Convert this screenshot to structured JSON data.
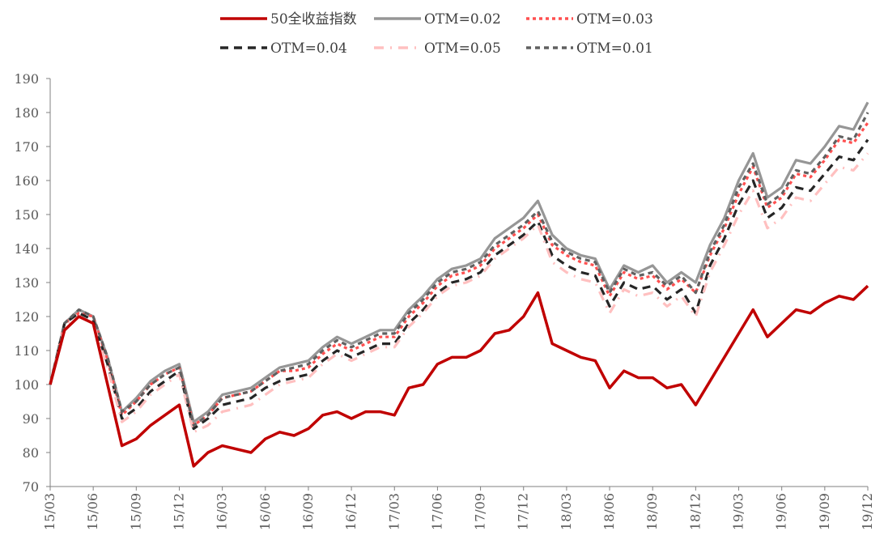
{
  "chart_data": {
    "type": "line",
    "title": "",
    "xlabel": "",
    "ylabel": "",
    "ylim": [
      70,
      190
    ],
    "yticks": [
      70,
      80,
      90,
      100,
      110,
      120,
      130,
      140,
      150,
      160,
      170,
      180,
      190
    ],
    "xticks": [
      "15/03",
      "15/06",
      "15/09",
      "15/12",
      "16/03",
      "16/06",
      "16/09",
      "16/12",
      "17/03",
      "17/06",
      "17/09",
      "17/12",
      "18/03",
      "18/06",
      "18/09",
      "18/12",
      "19/03",
      "19/06",
      "19/09",
      "19/12"
    ],
    "grid": false,
    "legend": "top",
    "x": [
      "15/03",
      "15/04",
      "15/05",
      "15/06",
      "15/07",
      "15/08",
      "15/09",
      "15/10",
      "15/11",
      "15/12",
      "16/01",
      "16/02",
      "16/03",
      "16/04",
      "16/05",
      "16/06",
      "16/07",
      "16/08",
      "16/09",
      "16/10",
      "16/11",
      "16/12",
      "17/01",
      "17/02",
      "17/03",
      "17/04",
      "17/05",
      "17/06",
      "17/07",
      "17/08",
      "17/09",
      "17/10",
      "17/11",
      "17/12",
      "18/01",
      "18/02",
      "18/03",
      "18/04",
      "18/05",
      "18/06",
      "18/07",
      "18/08",
      "18/09",
      "18/10",
      "18/11",
      "18/12",
      "19/01",
      "19/02",
      "19/03",
      "19/04",
      "19/05",
      "19/06",
      "19/07",
      "19/08",
      "19/09",
      "19/10",
      "19/11",
      "19/12"
    ],
    "series": [
      {
        "name": "50全收益指数",
        "color": "#c00000",
        "dash": "solid",
        "values": [
          100,
          116,
          120,
          118,
          100,
          82,
          84,
          88,
          91,
          94,
          76,
          80,
          82,
          81,
          80,
          84,
          86,
          85,
          87,
          91,
          92,
          90,
          92,
          92,
          91,
          99,
          100,
          106,
          108,
          108,
          110,
          115,
          116,
          120,
          127,
          112,
          110,
          108,
          107,
          99,
          104,
          102,
          102,
          99,
          100,
          94,
          101,
          108,
          115,
          122,
          114,
          118,
          122,
          121,
          124,
          126,
          125,
          129
        ]
      },
      {
        "name": "OTM=0.02",
        "color": "#969696",
        "dash": "solid",
        "values": [
          100,
          118,
          122,
          120,
          108,
          92,
          96,
          101,
          104,
          106,
          89,
          92,
          97,
          98,
          99,
          102,
          105,
          106,
          107,
          111,
          114,
          112,
          114,
          116,
          116,
          122,
          126,
          131,
          134,
          135,
          137,
          143,
          146,
          149,
          154,
          144,
          140,
          138,
          137,
          128,
          135,
          133,
          135,
          130,
          133,
          130,
          141,
          149,
          160,
          168,
          155,
          158,
          166,
          165,
          170,
          176,
          175,
          183
        ]
      },
      {
        "name": "OTM=0.03",
        "color": "#ff5050",
        "dash": "4 4",
        "values": [
          100,
          118,
          121,
          120,
          107,
          91,
          95,
          100,
          103,
          105,
          88,
          91,
          96,
          97,
          98,
          101,
          104,
          104,
          105,
          109,
          112,
          110,
          112,
          114,
          114,
          120,
          124,
          129,
          132,
          133,
          135,
          140,
          143,
          146,
          150,
          141,
          138,
          136,
          135,
          126,
          133,
          131,
          132,
          128,
          131,
          127,
          138,
          146,
          156,
          164,
          152,
          155,
          162,
          161,
          166,
          172,
          171,
          177
        ]
      },
      {
        "name": "OTM=0.04",
        "color": "#262626",
        "dash": "10 7",
        "values": [
          100,
          118,
          121,
          119,
          106,
          90,
          93,
          98,
          101,
          104,
          87,
          90,
          94,
          95,
          96,
          99,
          101,
          102,
          103,
          107,
          110,
          108,
          110,
          112,
          112,
          118,
          122,
          127,
          130,
          131,
          133,
          138,
          141,
          144,
          148,
          138,
          135,
          133,
          132,
          123,
          130,
          128,
          129,
          125,
          128,
          121,
          135,
          143,
          153,
          160,
          149,
          152,
          158,
          157,
          162,
          167,
          166,
          172
        ]
      },
      {
        "name": "OTM=0.05",
        "color": "#ffc0c0",
        "dash": "12 8 2 8",
        "values": [
          100,
          117,
          120,
          118,
          105,
          89,
          92,
          97,
          100,
          103,
          86,
          88,
          92,
          93,
          94,
          97,
          100,
          101,
          102,
          106,
          109,
          107,
          109,
          111,
          111,
          117,
          121,
          126,
          129,
          130,
          132,
          137,
          140,
          143,
          147,
          136,
          133,
          131,
          130,
          121,
          128,
          126,
          127,
          123,
          126,
          120,
          133,
          141,
          150,
          157,
          146,
          149,
          155,
          154,
          159,
          164,
          163,
          168
        ]
      },
      {
        "name": "OTM=0.01",
        "color": "#606060",
        "dash": "6 5",
        "values": [
          100,
          118,
          122,
          120,
          108,
          92,
          95,
          100,
          103,
          105,
          88,
          91,
          96,
          97,
          98,
          101,
          104,
          105,
          106,
          110,
          113,
          111,
          113,
          115,
          115,
          121,
          125,
          130,
          133,
          134,
          136,
          141,
          144,
          147,
          151,
          142,
          139,
          137,
          136,
          127,
          134,
          132,
          133,
          129,
          132,
          127,
          139,
          147,
          158,
          165,
          153,
          156,
          163,
          162,
          167,
          173,
          172,
          180
        ]
      }
    ]
  }
}
